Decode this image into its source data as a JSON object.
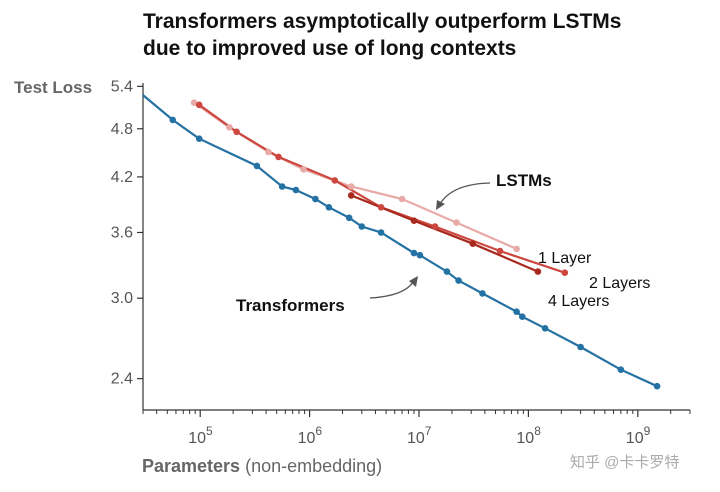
{
  "chart_data": {
    "type": "line",
    "title_lines": [
      "Transformers asymptotically outperform LSTMs",
      "due to improved use of long contexts"
    ],
    "ylabel": "Test Loss",
    "xlabel_bold": "Parameters",
    "xlabel_rest": " (non-embedding)",
    "xscale": "log",
    "yscale": "log",
    "xlim": [
      30000,
      3000000000
    ],
    "ylim": [
      2.2,
      5.45
    ],
    "yticks": [
      {
        "value": 5.4,
        "label": "5.4"
      },
      {
        "value": 4.8,
        "label": "4.8"
      },
      {
        "value": 4.2,
        "label": "4.2"
      },
      {
        "value": 3.6,
        "label": "3.6"
      },
      {
        "value": 3.0,
        "label": "3.0"
      },
      {
        "value": 2.4,
        "label": "2.4"
      }
    ],
    "xticks": [
      {
        "value": 100000,
        "base": "10",
        "exp": "5"
      },
      {
        "value": 1000000,
        "base": "10",
        "exp": "6"
      },
      {
        "value": 10000000,
        "base": "10",
        "exp": "7"
      },
      {
        "value": 100000000,
        "base": "10",
        "exp": "8"
      },
      {
        "value": 1000000000,
        "base": "10",
        "exp": "9"
      }
    ],
    "series": [
      {
        "name": "Transformers",
        "color": "#2471a3",
        "line_start": [
          30000,
          5.27
        ],
        "points": [
          [
            56000,
            4.92
          ],
          [
            98000,
            4.67
          ],
          [
            330000,
            4.33
          ],
          [
            560000,
            4.09
          ],
          [
            750000,
            4.05
          ],
          [
            1130000,
            3.95
          ],
          [
            1500000,
            3.86
          ],
          [
            2300000,
            3.75
          ],
          [
            3000000,
            3.66
          ],
          [
            4500000,
            3.6
          ],
          [
            9000000,
            3.4
          ],
          [
            10200000,
            3.38
          ],
          [
            18000000,
            3.23
          ],
          [
            23000000,
            3.15
          ],
          [
            38000000,
            3.04
          ],
          [
            78000000,
            2.89
          ],
          [
            88000000,
            2.85
          ],
          [
            142000000,
            2.76
          ],
          [
            300000000,
            2.62
          ],
          [
            700000000,
            2.46
          ],
          [
            1500000000,
            2.35
          ]
        ]
      },
      {
        "name": "1 Layer",
        "color": "#e8aaa6",
        "points": [
          [
            88000,
            5.16
          ],
          [
            185000,
            4.82
          ],
          [
            420000,
            4.5
          ],
          [
            880000,
            4.29
          ],
          [
            2400000,
            4.09
          ],
          [
            7000000,
            3.95
          ],
          [
            22000000,
            3.7
          ],
          [
            78000000,
            3.44
          ]
        ]
      },
      {
        "name": "2 Layers",
        "color": "#cd4740",
        "points": [
          [
            98000,
            5.13
          ],
          [
            215000,
            4.76
          ],
          [
            520000,
            4.44
          ],
          [
            1700000,
            4.16
          ],
          [
            4500000,
            3.86
          ],
          [
            14000000,
            3.66
          ],
          [
            55000000,
            3.42
          ],
          [
            215000000,
            3.22
          ]
        ]
      },
      {
        "name": "4 Layers",
        "color": "#a82a1e",
        "points": [
          [
            2400000,
            3.99
          ],
          [
            9000000,
            3.72
          ],
          [
            31000000,
            3.49
          ],
          [
            122000000,
            3.23
          ]
        ]
      }
    ],
    "annotations": {
      "lstms": "LSTMs",
      "transformers": "Transformers",
      "layer1": "1 Layer",
      "layer2": "2 Layers",
      "layer4": "4 Layers"
    }
  },
  "watermark": "知乎 @卡卡罗特"
}
